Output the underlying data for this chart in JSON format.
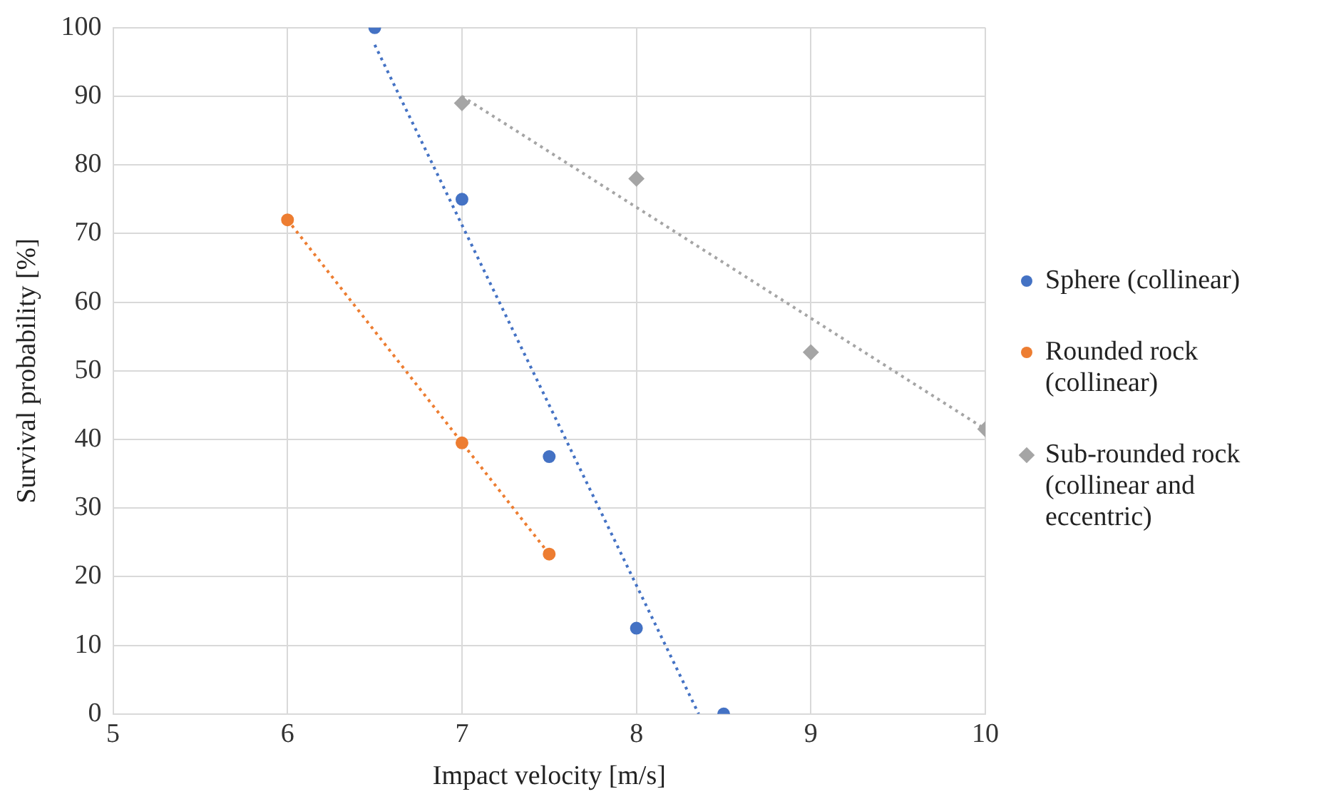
{
  "chart_data": {
    "type": "scatter",
    "xlabel": "Impact velocity [m/s]",
    "ylabel": "Survival probability [%]",
    "xlim": [
      5,
      10
    ],
    "xticks": [
      5,
      6,
      7,
      8,
      9,
      10
    ],
    "ylim": [
      0,
      100
    ],
    "yticks": [
      0,
      10,
      20,
      30,
      40,
      50,
      60,
      70,
      80,
      90,
      100
    ],
    "grid": true,
    "legend": "right",
    "series": [
      {
        "name": "Sphere (collinear)",
        "color": "#4472c4",
        "marker": "circle",
        "x": [
          6.5,
          7,
          7.5,
          8,
          8.5
        ],
        "values": [
          100,
          75,
          37.5,
          12.5,
          0
        ]
      },
      {
        "name": "Rounded rock (collinear)",
        "color": "#ed7d31",
        "marker": "circle",
        "x": [
          6,
          7,
          7.5
        ],
        "values": [
          72,
          39.5,
          23.3
        ]
      },
      {
        "name": "Sub-rounded rock (collinear and eccentric)",
        "color": "#a5a5a5",
        "marker": "diamond",
        "x": [
          7,
          8,
          9,
          10
        ],
        "values": [
          89,
          78,
          52.7,
          41.5
        ]
      },
      {
        "type": "line",
        "color": "#4472c4",
        "line_style": "dotted",
        "x": [
          6.5,
          8.357
        ],
        "values": [
          97.5,
          0
        ]
      },
      {
        "type": "line",
        "color": "#ed7d31",
        "line_style": "dotted",
        "x": [
          6,
          7.5
        ],
        "values": [
          72,
          23.3
        ]
      },
      {
        "type": "line",
        "color": "#a5a5a5",
        "line_style": "dotted",
        "x": [
          7,
          10
        ],
        "values": [
          90,
          41.5
        ]
      }
    ]
  }
}
